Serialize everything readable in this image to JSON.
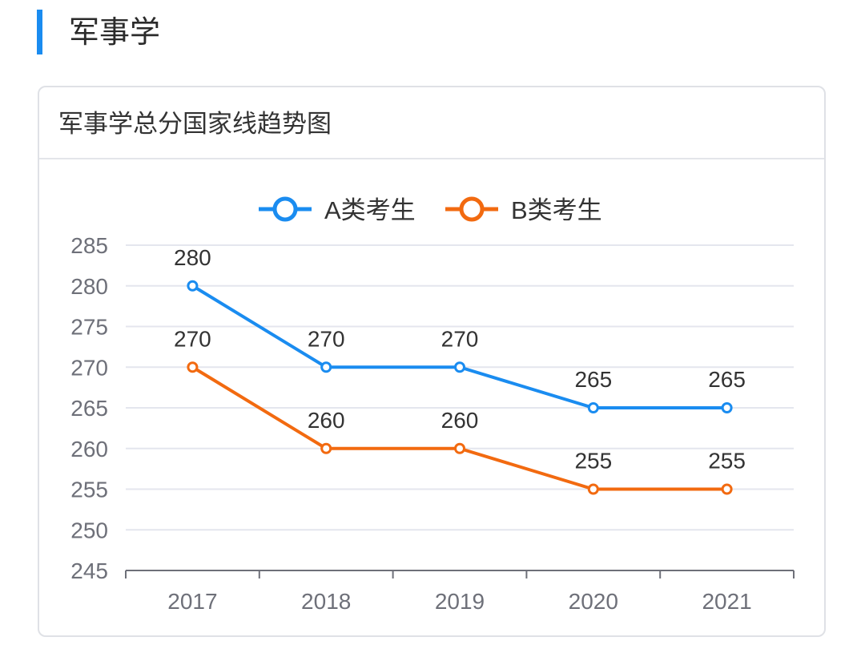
{
  "section": {
    "title": "军事学"
  },
  "card": {
    "title": "军事学总分国家线趋势图"
  },
  "colors": {
    "accent": "#1a8cf0",
    "seriesA": "#1a8cf0",
    "seriesB": "#f26a10",
    "grid": "#e4e6ee",
    "axis": "#6e7079"
  },
  "chart_data": {
    "type": "line",
    "title": "军事学总分国家线趋势图",
    "x": [
      "2017",
      "2018",
      "2019",
      "2020",
      "2021"
    ],
    "ylim": [
      245,
      285
    ],
    "yticks": [
      245,
      250,
      255,
      260,
      265,
      270,
      275,
      280,
      285
    ],
    "grid": true,
    "legend": "top-center",
    "series": [
      {
        "name": "A类考生",
        "color": "#1a8cf0",
        "values": [
          280,
          270,
          270,
          265,
          265
        ]
      },
      {
        "name": "B类考生",
        "color": "#f26a10",
        "values": [
          270,
          260,
          260,
          255,
          255
        ]
      }
    ]
  }
}
